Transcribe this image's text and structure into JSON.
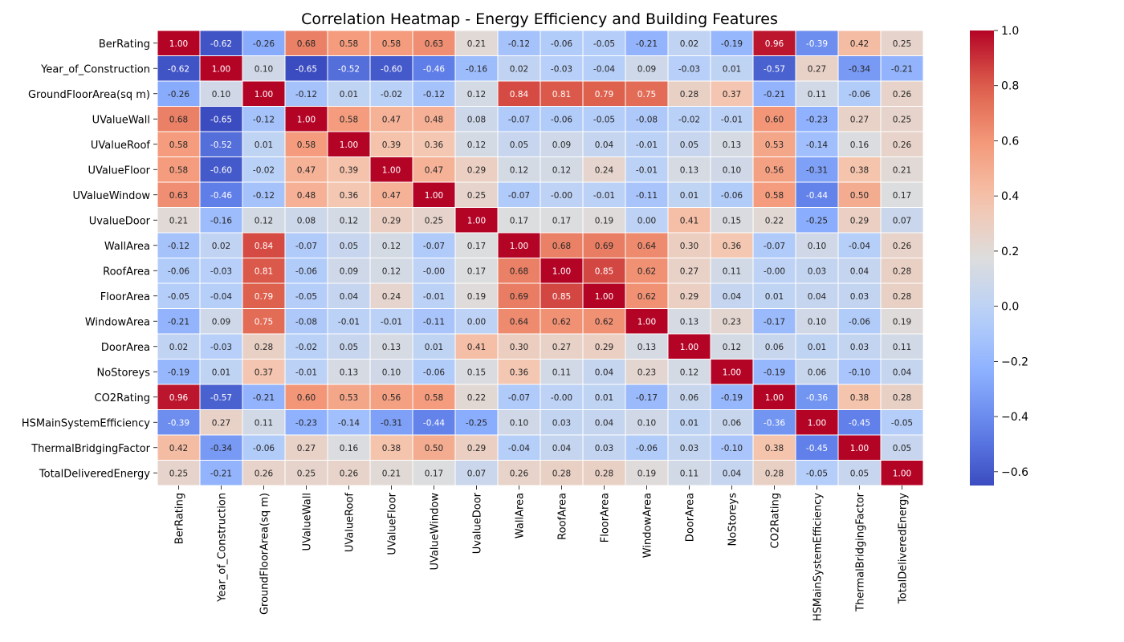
{
  "chart_data": {
    "type": "heatmap",
    "title": "Correlation Heatmap - Energy Efficiency and Building Features",
    "colormap": "coolwarm",
    "value_format": "0.00",
    "value_range": [
      -0.65,
      1.0
    ],
    "labels": [
      "BerRating",
      "Year_of_Construction",
      "GroundFloorArea(sq m)",
      "UValueWall",
      "UValueRoof",
      "UValueFloor",
      "UValueWindow",
      "UvalueDoor",
      "WallArea",
      "RoofArea",
      "FloorArea",
      "WindowArea",
      "DoorArea",
      "NoStoreys",
      "CO2Rating",
      "HSMainSystemEfficiency",
      "ThermalBridgingFactor",
      "TotalDeliveredEnergy"
    ],
    "matrix": [
      [
        1.0,
        -0.62,
        -0.26,
        0.68,
        0.58,
        0.58,
        0.63,
        0.21,
        -0.12,
        -0.06,
        -0.05,
        -0.21,
        0.02,
        -0.19,
        0.96,
        -0.39,
        0.42,
        0.25
      ],
      [
        -0.62,
        1.0,
        0.1,
        -0.65,
        -0.52,
        -0.6,
        -0.46,
        -0.16,
        0.02,
        -0.03,
        -0.04,
        0.09,
        -0.03,
        0.01,
        -0.57,
        0.27,
        -0.34,
        -0.21
      ],
      [
        -0.26,
        0.1,
        1.0,
        -0.12,
        0.01,
        -0.02,
        -0.12,
        0.12,
        0.84,
        0.81,
        0.79,
        0.75,
        0.28,
        0.37,
        -0.21,
        0.11,
        -0.06,
        0.26
      ],
      [
        0.68,
        -0.65,
        -0.12,
        1.0,
        0.58,
        0.47,
        0.48,
        0.08,
        -0.07,
        -0.06,
        -0.05,
        -0.08,
        -0.02,
        -0.01,
        0.6,
        -0.23,
        0.27,
        0.25
      ],
      [
        0.58,
        -0.52,
        0.01,
        0.58,
        1.0,
        0.39,
        0.36,
        0.12,
        0.05,
        0.09,
        0.04,
        -0.01,
        0.05,
        0.13,
        0.53,
        -0.14,
        0.16,
        0.26
      ],
      [
        0.58,
        -0.6,
        -0.02,
        0.47,
        0.39,
        1.0,
        0.47,
        0.29,
        0.12,
        0.12,
        0.24,
        -0.01,
        0.13,
        0.1,
        0.56,
        -0.31,
        0.38,
        0.21
      ],
      [
        0.63,
        -0.46,
        -0.12,
        0.48,
        0.36,
        0.47,
        1.0,
        0.25,
        -0.07,
        -0.0,
        -0.01,
        -0.11,
        0.01,
        -0.06,
        0.58,
        -0.44,
        0.5,
        0.17
      ],
      [
        0.21,
        -0.16,
        0.12,
        0.08,
        0.12,
        0.29,
        0.25,
        1.0,
        0.17,
        0.17,
        0.19,
        0.0,
        0.41,
        0.15,
        0.22,
        -0.25,
        0.29,
        0.07
      ],
      [
        -0.12,
        0.02,
        0.84,
        -0.07,
        0.05,
        0.12,
        -0.07,
        0.17,
        1.0,
        0.68,
        0.69,
        0.64,
        0.3,
        0.36,
        -0.07,
        0.1,
        -0.04,
        0.26
      ],
      [
        -0.06,
        -0.03,
        0.81,
        -0.06,
        0.09,
        0.12,
        -0.0,
        0.17,
        0.68,
        1.0,
        0.85,
        0.62,
        0.27,
        0.11,
        -0.0,
        0.03,
        0.04,
        0.28
      ],
      [
        -0.05,
        -0.04,
        0.79,
        -0.05,
        0.04,
        0.24,
        -0.01,
        0.19,
        0.69,
        0.85,
        1.0,
        0.62,
        0.29,
        0.04,
        0.01,
        0.04,
        0.03,
        0.28
      ],
      [
        -0.21,
        0.09,
        0.75,
        -0.08,
        -0.01,
        -0.01,
        -0.11,
        0.0,
        0.64,
        0.62,
        0.62,
        1.0,
        0.13,
        0.23,
        -0.17,
        0.1,
        -0.06,
        0.19
      ],
      [
        0.02,
        -0.03,
        0.28,
        -0.02,
        0.05,
        0.13,
        0.01,
        0.41,
        0.3,
        0.27,
        0.29,
        0.13,
        1.0,
        0.12,
        0.06,
        0.01,
        0.03,
        0.11
      ],
      [
        -0.19,
        0.01,
        0.37,
        -0.01,
        0.13,
        0.1,
        -0.06,
        0.15,
        0.36,
        0.11,
        0.04,
        0.23,
        0.12,
        1.0,
        -0.19,
        0.06,
        -0.1,
        0.04
      ],
      [
        0.96,
        -0.57,
        -0.21,
        0.6,
        0.53,
        0.56,
        0.58,
        0.22,
        -0.07,
        -0.0,
        0.01,
        -0.17,
        0.06,
        -0.19,
        1.0,
        -0.36,
        0.38,
        0.28
      ],
      [
        -0.39,
        0.27,
        0.11,
        -0.23,
        -0.14,
        -0.31,
        -0.44,
        -0.25,
        0.1,
        0.03,
        0.04,
        0.1,
        0.01,
        0.06,
        -0.36,
        1.0,
        -0.45,
        -0.05
      ],
      [
        0.42,
        -0.34,
        -0.06,
        0.27,
        0.16,
        0.38,
        0.5,
        0.29,
        -0.04,
        0.04,
        0.03,
        -0.06,
        0.03,
        -0.1,
        0.38,
        -0.45,
        1.0,
        0.05
      ],
      [
        0.25,
        -0.21,
        0.26,
        0.25,
        0.26,
        0.21,
        0.17,
        0.07,
        0.26,
        0.28,
        0.28,
        0.19,
        0.11,
        0.04,
        0.28,
        -0.05,
        0.05,
        1.0
      ]
    ],
    "colorbar": {
      "ticks": [
        1.0,
        0.8,
        0.6,
        0.4,
        0.2,
        0.0,
        -0.2,
        -0.4,
        -0.6
      ],
      "tick_labels": [
        "1.0",
        "0.8",
        "0.6",
        "0.4",
        "0.2",
        "0.0",
        "−0.2",
        "−0.4",
        "−0.6"
      ]
    }
  }
}
